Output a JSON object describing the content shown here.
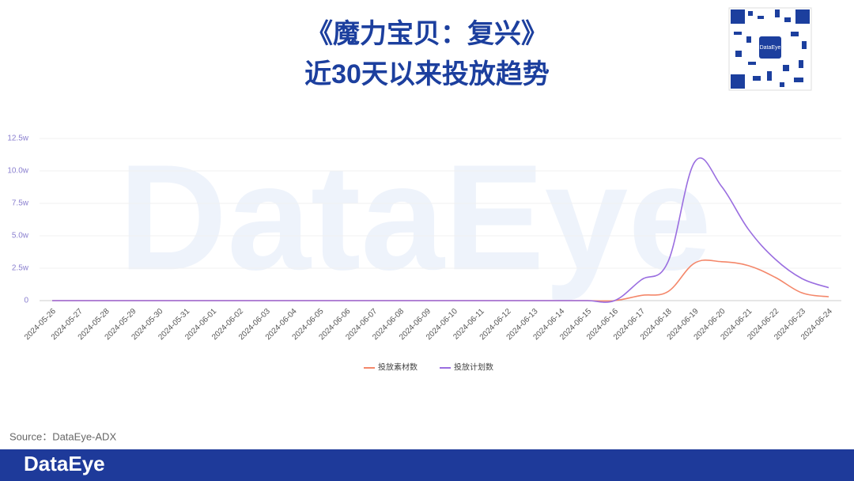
{
  "chart_data": {
    "type": "line",
    "title": "《魔力宝贝：复兴》",
    "subtitle": "近30天以来投放趋势",
    "watermark": "DataEye",
    "qr_label": "DataEye",
    "source": "Source：DataEye-ADX",
    "footer_logo": "DataEye",
    "categories": [
      "2024-05-26",
      "2024-05-27",
      "2024-05-28",
      "2024-05-29",
      "2024-05-30",
      "2024-05-31",
      "2024-06-01",
      "2024-06-02",
      "2024-06-03",
      "2024-06-04",
      "2024-06-05",
      "2024-06-06",
      "2024-06-07",
      "2024-06-08",
      "2024-06-09",
      "2024-06-10",
      "2024-06-11",
      "2024-06-12",
      "2024-06-13",
      "2024-06-14",
      "2024-06-15",
      "2024-06-16",
      "2024-06-17",
      "2024-06-18",
      "2024-06-19",
      "2024-06-20",
      "2024-06-21",
      "2024-06-22",
      "2024-06-23",
      "2024-06-24"
    ],
    "series": [
      {
        "name": "投放素材数",
        "color": "#f4876a",
        "values": [
          0,
          0,
          0,
          0,
          0,
          0,
          0,
          0,
          0,
          0,
          0,
          0,
          0,
          0,
          0,
          0,
          0,
          0,
          0,
          0,
          0,
          0,
          0.4,
          0.7,
          2.9,
          3.0,
          2.7,
          1.8,
          0.6,
          0.3
        ]
      },
      {
        "name": "投放计划数",
        "color": "#9a6ee0",
        "values": [
          0,
          0,
          0,
          0,
          0,
          0,
          0,
          0,
          0,
          0,
          0,
          0,
          0,
          0,
          0,
          0,
          0,
          0,
          0,
          0,
          0,
          0,
          1.6,
          3.0,
          10.7,
          8.8,
          5.5,
          3.2,
          1.7,
          1.0
        ]
      }
    ],
    "ylim": [
      0,
      12.5
    ],
    "yticks": [
      0,
      {
        "value": 2.5,
        "label": "2.5w"
      },
      {
        "value": 5.0,
        "label": "5.0w"
      },
      {
        "value": 7.5,
        "label": "7.5w"
      },
      {
        "value": 10.0,
        "label": "10.0w"
      },
      {
        "value": 12.5,
        "label": "12.5w"
      }
    ],
    "grid": true,
    "legend": "bottom"
  }
}
